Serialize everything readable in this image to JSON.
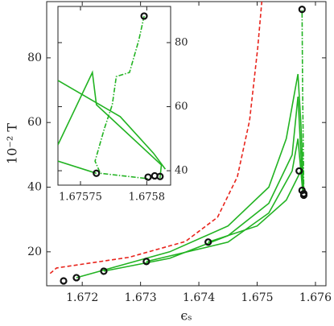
{
  "chart_data": [
    {
      "type": "line",
      "xlabel": "ϵₛ",
      "ylabel": "10⁻² T",
      "xlim": [
        1.67139,
        1.67618
      ],
      "ylim": [
        9.5,
        97.4
      ],
      "xticks": [
        1.672,
        1.673,
        1.674,
        1.675,
        1.676
      ],
      "yticks": [
        20,
        40,
        60,
        80
      ],
      "yaxis_side": "left",
      "series": [
        {
          "style": "dashed",
          "color": "#e8241c",
          "x": [
            1.67145,
            1.67156,
            1.6728,
            1.67377,
            1.67432,
            1.67466,
            1.67487,
            1.67501,
            1.67508
          ],
          "values": [
            13.3,
            15.0,
            18.3,
            23.2,
            30.7,
            43.2,
            60.6,
            83.0,
            97.4
          ]
        },
        {
          "style": "solid",
          "color": "#22b322",
          "x": [
            1.6719,
            1.6735,
            1.6745,
            1.6752,
            1.6755,
            1.6757,
            1.67575,
            1.6758
          ],
          "values": [
            12,
            20,
            28,
            40,
            55,
            75,
            60,
            38
          ]
        },
        {
          "style": "solid",
          "color": "#22b322",
          "x": [
            1.67237,
            1.6735,
            1.6745,
            1.6752,
            1.6756,
            1.6757,
            1.67578
          ],
          "values": [
            14,
            18,
            25,
            35,
            50,
            68,
            40
          ]
        },
        {
          "style": "solid",
          "color": "#22b322",
          "x": [
            1.6731,
            1.6745,
            1.6752,
            1.6756,
            1.6757,
            1.67578
          ],
          "values": [
            17,
            23,
            32,
            45,
            55,
            39
          ]
        },
        {
          "style": "solid",
          "color": "#22b322",
          "x": [
            1.67416,
            1.675,
            1.6755,
            1.67575
          ],
          "values": [
            23,
            28,
            36,
            45
          ]
        },
        {
          "style": "dashdot",
          "color": "#22b322",
          "x": [
            1.6758,
            1.67578,
            1.67577
          ],
          "values": [
            38,
            70,
            95
          ]
        },
        {
          "style": "markers",
          "color": "#111",
          "x": [
            1.67168,
            1.6719,
            1.67237,
            1.6731,
            1.67416,
            1.67572,
            1.67577,
            1.6758,
            1.6758,
            1.67577
          ],
          "values": [
            11,
            12,
            14,
            17,
            23,
            45,
            39,
            38,
            37.5,
            95
          ]
        }
      ]
    },
    {
      "type": "line",
      "xlim": [
        1.675733,
        1.675818
      ],
      "ylim": [
        35.5,
        91.3
      ],
      "xticks": [
        1.67575,
        1.6758
      ],
      "yticks": [
        40,
        60,
        80
      ],
      "yaxis_side": "right",
      "series": [
        {
          "style": "dashdot",
          "color": "#22b322",
          "x": [
            1.675798,
            1.675794,
            1.675787,
            1.675777,
            1.675774,
            1.675768,
            1.675761,
            1.675765,
            1.675801
          ],
          "values": [
            88.3,
            80.8,
            70.7,
            69.4,
            60.6,
            53.1,
            43.0,
            39.2,
            37.5
          ]
        },
        {
          "style": "solid",
          "color": "#22b322",
          "x": [
            1.675733,
            1.67578,
            1.675805,
            1.675814
          ],
          "values": [
            68.2,
            56.9,
            45.5,
            40.5
          ]
        },
        {
          "style": "solid",
          "color": "#22b322",
          "x": [
            1.675733,
            1.675759,
            1.675762,
            1.675811,
            1.67581
          ],
          "values": [
            48.1,
            70.7,
            60.6,
            41.8,
            37.7
          ]
        },
        {
          "style": "solid",
          "color": "#22b322",
          "x": [
            1.675733,
            1.675762
          ],
          "values": [
            43.0,
            39.2
          ]
        },
        {
          "style": "markers",
          "color": "#111",
          "x": [
            1.675762,
            1.675798,
            1.675801,
            1.675806,
            1.67581
          ],
          "values": [
            39.2,
            88.3,
            38.0,
            38.4,
            38.2
          ]
        }
      ]
    }
  ]
}
